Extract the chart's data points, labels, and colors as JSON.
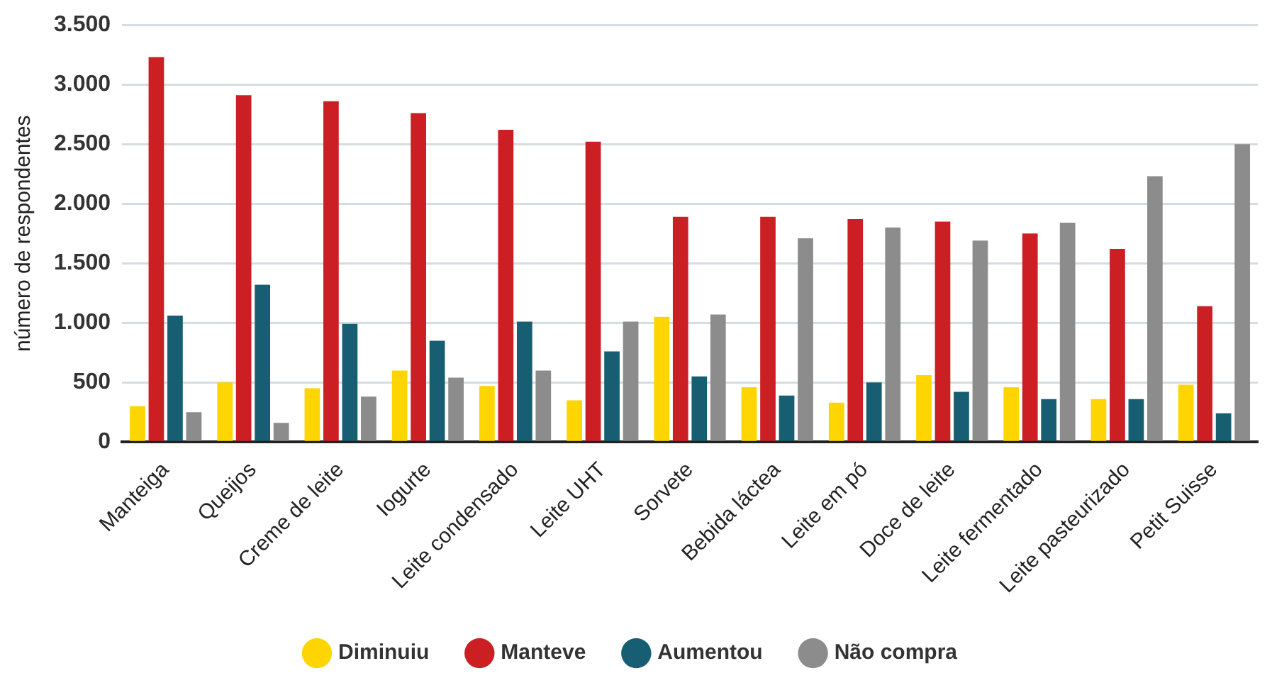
{
  "chart_data": {
    "type": "bar",
    "ylabel": "número de respondentes",
    "categories": [
      "Manteiga",
      "Queijos",
      "Creme de leite",
      "Iogurte",
      "Leite condensado",
      "Leite UHT",
      "Sorvete",
      "Bebida láctea",
      "Leite em pó",
      "Doce de leite",
      "Leite fermentado",
      "Leite pasteurizado",
      "Petit Suisse"
    ],
    "series": [
      {
        "name": "Diminuiu",
        "color": "#ffd500",
        "values": [
          300,
          500,
          450,
          600,
          470,
          350,
          1050,
          460,
          330,
          560,
          460,
          360,
          480
        ]
      },
      {
        "name": "Manteve",
        "color": "#cc1f24",
        "values": [
          3230,
          2910,
          2860,
          2760,
          2620,
          2520,
          1890,
          1890,
          1870,
          1850,
          1750,
          1620,
          1140
        ]
      },
      {
        "name": "Aumentou",
        "color": "#185e72",
        "values": [
          1060,
          1320,
          990,
          850,
          1010,
          760,
          550,
          390,
          500,
          420,
          360,
          360,
          240
        ]
      },
      {
        "name": "Não compra",
        "color": "#8c8c8c",
        "values": [
          250,
          160,
          380,
          540,
          600,
          1010,
          1070,
          1710,
          1800,
          1690,
          1840,
          2230,
          2500
        ]
      }
    ],
    "ylim": [
      0,
      3500
    ],
    "yticks": [
      {
        "value": 0,
        "label": "0"
      },
      {
        "value": 500,
        "label": "500"
      },
      {
        "value": 1000,
        "label": "1.000"
      },
      {
        "value": 1500,
        "label": "1.500"
      },
      {
        "value": 2000,
        "label": "2.000"
      },
      {
        "value": 2500,
        "label": "2.500"
      },
      {
        "value": 3000,
        "label": "3.000"
      },
      {
        "value": 3500,
        "label": "3.500"
      }
    ],
    "grid": "y",
    "legend": "bottom"
  }
}
